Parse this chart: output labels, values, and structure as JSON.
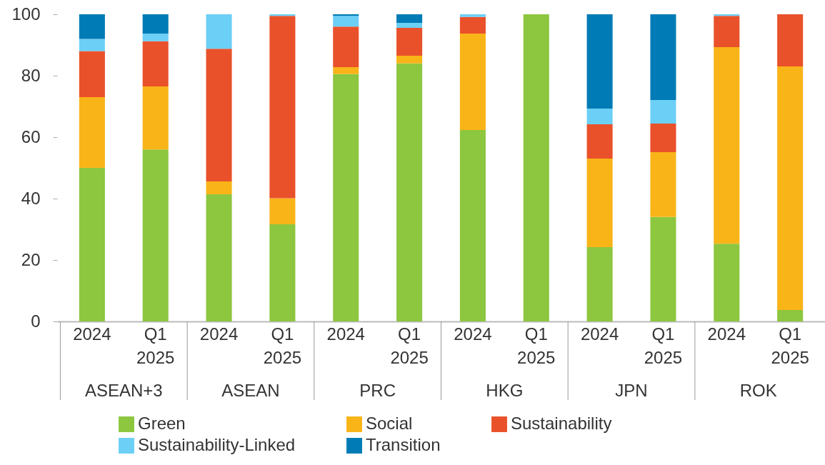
{
  "chart_data": {
    "type": "bar",
    "stacked": true,
    "categories": [
      "2024",
      "Q1 2025",
      "2024",
      "Q1 2025",
      "2024",
      "Q1 2025",
      "2024",
      "Q1 2025",
      "2024",
      "Q1 2025",
      "2024",
      "Q1 2025"
    ],
    "annotations": [
      "ASEAN+3",
      "ASEAN",
      "PRC",
      "HKG",
      "JPN",
      "ROK"
    ],
    "series": [
      {
        "name": "Green",
        "color": "#8dc63f",
        "values": [
          50,
          56,
          41.4,
          31.6,
          80.5,
          84,
          62.3,
          100,
          24.2,
          34,
          25.3,
          3.7
        ]
      },
      {
        "name": "Social",
        "color": "#f9b418",
        "values": [
          23,
          20.5,
          4.2,
          8.5,
          2.3,
          2.5,
          31.4,
          0,
          28.8,
          21.1,
          64,
          79.3
        ]
      },
      {
        "name": "Sustainability",
        "color": "#e9512b",
        "values": [
          15,
          14.7,
          43.2,
          59.4,
          13.2,
          9.1,
          5.4,
          0,
          11.2,
          9.3,
          10.2,
          17
        ]
      },
      {
        "name": "Sustainability-Linked",
        "color": "#6ccff6",
        "values": [
          4,
          2.5,
          11.2,
          0.5,
          3.5,
          1.6,
          0.9,
          0,
          5.1,
          7.7,
          0.5,
          0
        ]
      },
      {
        "name": "Transition",
        "color": "#007bb5",
        "values": [
          8,
          6.3,
          0,
          0,
          0.5,
          2.8,
          0,
          0,
          30.7,
          27.9,
          0,
          0
        ]
      }
    ],
    "ylim": [
      0,
      100
    ],
    "yticks": [
      0,
      20,
      40,
      60,
      80,
      100
    ],
    "grid": false,
    "legend": "bottom"
  }
}
